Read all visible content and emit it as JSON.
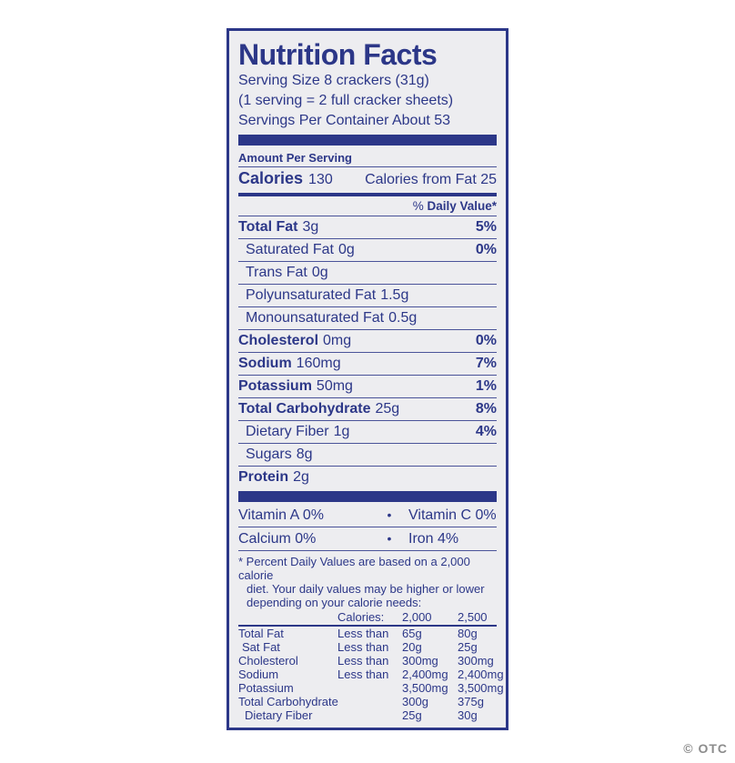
{
  "colors": {
    "accent_navy": "#2c3788",
    "label_background": "#ededf0",
    "page_background": "#ffffff",
    "watermark_gray": "#8c8c8c"
  },
  "watermark": "© OTC",
  "label": {
    "title": "Nutrition Facts",
    "serving": {
      "line1": "Serving Size 8 crackers (31g)",
      "line2": "(1 serving = 2 full cracker sheets)",
      "line3": "Servings Per Container About 53"
    },
    "amount_per_serving": "Amount Per Serving",
    "calories": {
      "label": "Calories",
      "value": "130",
      "from_fat": "Calories from Fat 25"
    },
    "daily_value_header": {
      "prefix": "% ",
      "bold": "Daily Value*"
    },
    "nutrients": [
      {
        "name": "Total Fat",
        "amount": "3g",
        "dv": "5%"
      },
      {
        "name": "Saturated Fat",
        "amount": "0g",
        "dv": "0%"
      },
      {
        "name": "Trans Fat",
        "amount": "0g",
        "dv": ""
      },
      {
        "name": "Polyunsaturated Fat",
        "amount": "1.5g",
        "dv": ""
      },
      {
        "name": "Monounsaturated Fat",
        "amount": "0.5g",
        "dv": ""
      },
      {
        "name": "Cholesterol",
        "amount": "0mg",
        "dv": "0%"
      },
      {
        "name": "Sodium",
        "amount": "160mg",
        "dv": "7%"
      },
      {
        "name": "Potassium",
        "amount": "50mg",
        "dv": "1%"
      },
      {
        "name": "Total Carbohydrate",
        "amount": "25g",
        "dv": "8%"
      },
      {
        "name": "Dietary Fiber",
        "amount": "1g",
        "dv": "4%"
      },
      {
        "name": "Sugars",
        "amount": "8g",
        "dv": ""
      },
      {
        "name": "Protein",
        "amount": "2g",
        "dv": ""
      }
    ],
    "vitamins": [
      {
        "left": "Vitamin A 0%",
        "bullet": "•",
        "right": "Vitamin C 0%"
      },
      {
        "left": "Calcium 0%",
        "bullet": "•",
        "right": "Iron  4%"
      }
    ],
    "footnote": {
      "line1": "* Percent Daily Values are based on a 2,000 calorie",
      "line2": "diet. Your daily values may be higher or lower",
      "line3": "depending on your calorie needs:"
    },
    "footer_table": {
      "header": {
        "col2": "Calories:",
        "col3": "2,000",
        "col4": "2,500"
      },
      "rows": [
        [
          "Total Fat",
          "Less than",
          "65g",
          "80g"
        ],
        [
          "Sat Fat",
          "Less than",
          "20g",
          "25g"
        ],
        [
          "Cholesterol",
          "Less than",
          "300mg",
          "300mg"
        ],
        [
          "Sodium",
          "Less than",
          "2,400mg",
          "2,400mg"
        ],
        [
          "Potassium",
          "",
          "3,500mg",
          "3,500mg"
        ],
        [
          "Total Carbohydrate",
          "",
          "300g",
          "375g"
        ],
        [
          "Dietary Fiber",
          "",
          "25g",
          "30g"
        ]
      ]
    }
  }
}
